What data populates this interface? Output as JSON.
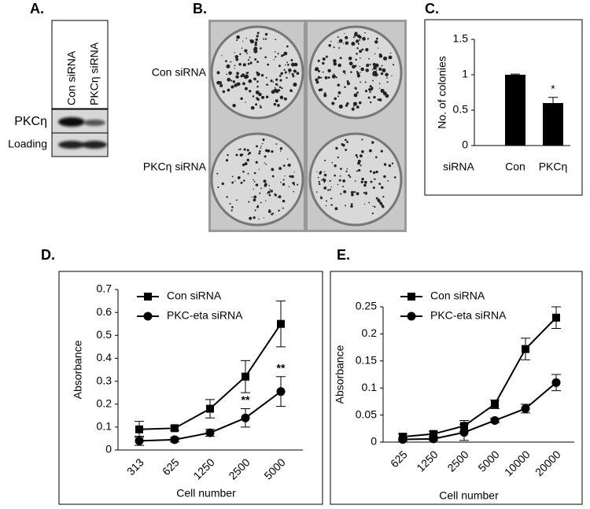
{
  "panels": {
    "a": {
      "letter": "A.",
      "lanes": [
        "Con siRNA",
        "PKCη siRNA"
      ],
      "rows": [
        "PKCη",
        "Loading"
      ]
    },
    "b": {
      "letter": "B.",
      "rows": [
        "Con siRNA",
        "PKCη siRNA"
      ]
    }
  },
  "chart_data": [
    {
      "type": "bar",
      "letter": "C.",
      "y_label": "No. of colonies",
      "x_label": "siRNA",
      "categories": [
        "Con",
        "PKCη"
      ],
      "values": [
        1.0,
        0.6
      ],
      "errors": [
        0.01,
        0.08
      ],
      "color": "#000000",
      "ylim": [
        0,
        1.5
      ],
      "yticks": [
        0,
        0.5,
        1,
        1.5
      ],
      "annotations": [
        "*"
      ],
      "grid": false
    },
    {
      "type": "line",
      "letter": "D.",
      "y_label": "Absorbance",
      "x_label": "Cell number",
      "categories": [
        "313",
        "625",
        "1250",
        "2500",
        "5000"
      ],
      "series": [
        {
          "name": "Con siRNA",
          "color": "#000000",
          "marker": "square",
          "values": [
            0.09,
            0.095,
            0.18,
            0.32,
            0.55
          ],
          "errors": [
            0.035,
            0.01,
            0.04,
            0.07,
            0.1
          ]
        },
        {
          "name": "PKC-eta siRNA",
          "color": "#000000",
          "marker": "circle",
          "values": [
            0.04,
            0.045,
            0.075,
            0.14,
            0.255
          ],
          "errors": [
            0.02,
            0.01,
            0.015,
            0.04,
            0.065
          ]
        }
      ],
      "ylim": [
        0,
        0.7
      ],
      "yticks": [
        0,
        0.1,
        0.2,
        0.3,
        0.4,
        0.5,
        0.6,
        0.7
      ],
      "annotations": [
        "**",
        "**"
      ],
      "legend": "upper left",
      "grid": false
    },
    {
      "type": "line",
      "letter": "E.",
      "y_label": "Absorbance",
      "x_label": "Cell number",
      "categories": [
        "625",
        "1250",
        "2500",
        "5000",
        "10000",
        "20000"
      ],
      "series": [
        {
          "name": "Con siRNA",
          "color": "#000000",
          "marker": "square",
          "values": [
            0.01,
            0.015,
            0.03,
            0.07,
            0.172,
            0.23
          ],
          "errors": [
            0.005,
            0.005,
            0.01,
            0.008,
            0.02,
            0.02
          ]
        },
        {
          "name": "PKC-eta siRNA",
          "color": "#000000",
          "marker": "circle",
          "values": [
            0.005,
            0.006,
            0.018,
            0.04,
            0.062,
            0.11
          ],
          "errors": [
            0.003,
            0.003,
            0.015,
            0.004,
            0.008,
            0.015
          ]
        }
      ],
      "ylim": [
        0,
        0.25
      ],
      "yticks": [
        0,
        0.05,
        0.1,
        0.15,
        0.2,
        0.25
      ],
      "legend": "upper left",
      "grid": false
    }
  ]
}
